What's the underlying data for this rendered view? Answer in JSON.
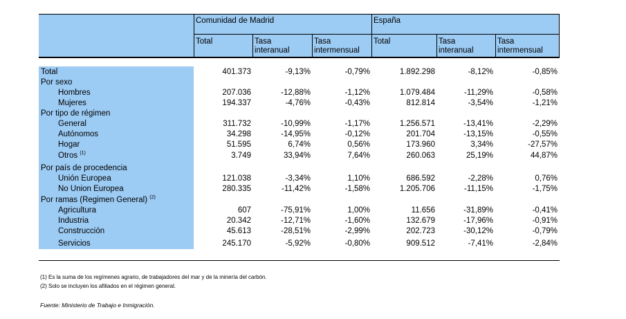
{
  "header": {
    "group_madrid": "Comunidad de Madrid",
    "group_espana": "España",
    "columns": [
      "Total",
      "Tasa interanual",
      "Tasa intermensual",
      "Total",
      "Tasa interanual",
      "Tasa intermensual"
    ]
  },
  "rows": [
    {
      "label": "Total",
      "indent": 0,
      "values": [
        "401.373",
        "-9,13%",
        "-0,79%",
        "1.892.298",
        "-8,12%",
        "-0,85%"
      ]
    },
    {
      "label": "Por sexo",
      "indent": 0,
      "values": []
    },
    {
      "label": "Hombres",
      "indent": 1,
      "values": [
        "207.036",
        "-12,88%",
        "-1,12%",
        "1.079.484",
        "-11,29%",
        "-0,58%"
      ]
    },
    {
      "label": "Mujeres",
      "indent": 1,
      "values": [
        "194.337",
        "-4,76%",
        "-0,43%",
        "812.814",
        "-3,54%",
        "-1,21%"
      ]
    },
    {
      "label": "Por tipo de régimen",
      "indent": 0,
      "values": []
    },
    {
      "label": "General",
      "indent": 1,
      "values": [
        "311.732",
        "-10,99%",
        "-1,17%",
        "1.256.571",
        "-13,41%",
        "-2,29%"
      ]
    },
    {
      "label": "Autónomos",
      "indent": 1,
      "values": [
        "34.298",
        "-14,95%",
        "-0,12%",
        "201.704",
        "-13,15%",
        "-0,55%"
      ]
    },
    {
      "label": "Hogar",
      "indent": 1,
      "values": [
        "51.595",
        "6,74%",
        "0,56%",
        "173.960",
        "3,34%",
        "-27,57%"
      ]
    },
    {
      "label": "Otros",
      "sup": "(1)",
      "indent": 1,
      "values": [
        "3.749",
        "33,94%",
        "7,64%",
        "260.063",
        "25,19%",
        "44,87%"
      ]
    },
    {
      "label": "Por país de procedencia",
      "indent": 0,
      "values": []
    },
    {
      "label": "Unión Europea",
      "indent": 1,
      "values": [
        "121.038",
        "-3,34%",
        "1,10%",
        "686.592",
        "-2,28%",
        "0,76%"
      ]
    },
    {
      "label": "No Union Europea",
      "indent": 1,
      "values": [
        "280.335",
        "-11,42%",
        "-1,58%",
        "1.205.706",
        "-11,15%",
        "-1,75%"
      ]
    },
    {
      "label": "Por ramas (Regimen General)",
      "sup": "(2)",
      "indent": 0,
      "values": []
    },
    {
      "label": "Agricultura",
      "indent": 1,
      "values": [
        "607",
        "-75,91%",
        "1,00%",
        "11.656",
        "-31,89%",
        "-0,41%"
      ]
    },
    {
      "label": "Industria",
      "indent": 1,
      "values": [
        "20.342",
        "-12,71%",
        "-1,60%",
        "132.679",
        "-17,96%",
        "-0,91%"
      ]
    },
    {
      "label": "Construcción",
      "indent": 1,
      "values": [
        "45.613",
        "-28,51%",
        "-2,99%",
        "202.723",
        "-30,12%",
        "-0,79%"
      ]
    },
    {
      "label": "Servicios",
      "indent": 1,
      "values": [
        "245.170",
        "-5,92%",
        "-0,80%",
        "909.512",
        "-7,41%",
        "-2,84%"
      ]
    }
  ],
  "footnotes": {
    "note1": "(1) Es la suma de los regímenes  agrario, de trabajadores del mar y de la minería del carbón.",
    "note2": "(2) Solo se incluyen los afiliados en el régimen general.",
    "source": "Fuente: Ministerio de Trabajo e Inmigración."
  }
}
